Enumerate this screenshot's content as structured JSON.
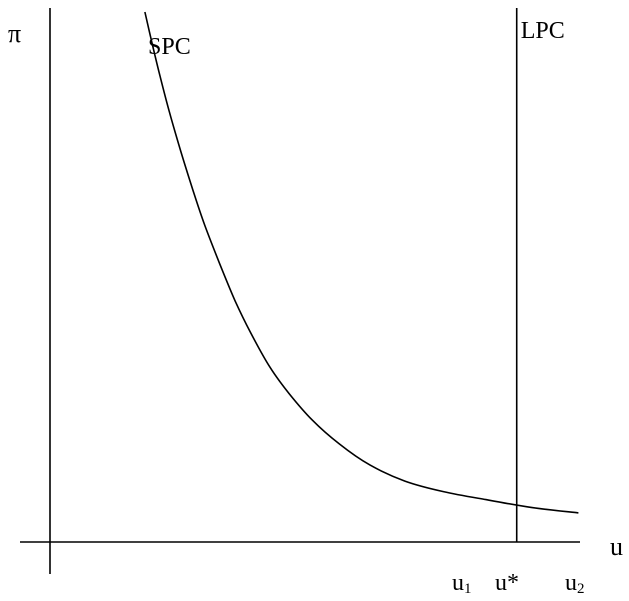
{
  "chart_data": {
    "type": "line",
    "title": "",
    "xlabel": "u",
    "ylabel": "π",
    "xlim": [
      0,
      14
    ],
    "ylim": [
      0,
      20
    ],
    "grid": false,
    "x_ticks": [
      {
        "base": "u",
        "sub": "1",
        "value": 11.1
      },
      {
        "base": "u*",
        "sub": "",
        "value": 12.1
      },
      {
        "base": "u",
        "sub": "2",
        "value": 13.8
      }
    ],
    "series": [
      {
        "name": "SPC",
        "kind": "curve",
        "color": "#000000",
        "x": [
          2.46,
          2.65,
          2.85,
          3.1,
          3.4,
          3.7,
          4.0,
          4.4,
          4.8,
          5.2,
          5.7,
          6.2,
          6.8,
          7.5,
          8.3,
          9.2,
          10.2,
          11.3,
          12.5,
          13.7
        ],
        "y": [
          20.0,
          18.8,
          17.6,
          16.2,
          14.7,
          13.3,
          12.0,
          10.5,
          9.1,
          7.9,
          6.6,
          5.6,
          4.6,
          3.7,
          2.9,
          2.3,
          1.9,
          1.6,
          1.3,
          1.1
        ]
      },
      {
        "name": "LPC",
        "kind": "vertical",
        "color": "#000000",
        "x": [
          12.1,
          12.1
        ],
        "y": [
          0,
          20
        ]
      }
    ]
  }
}
